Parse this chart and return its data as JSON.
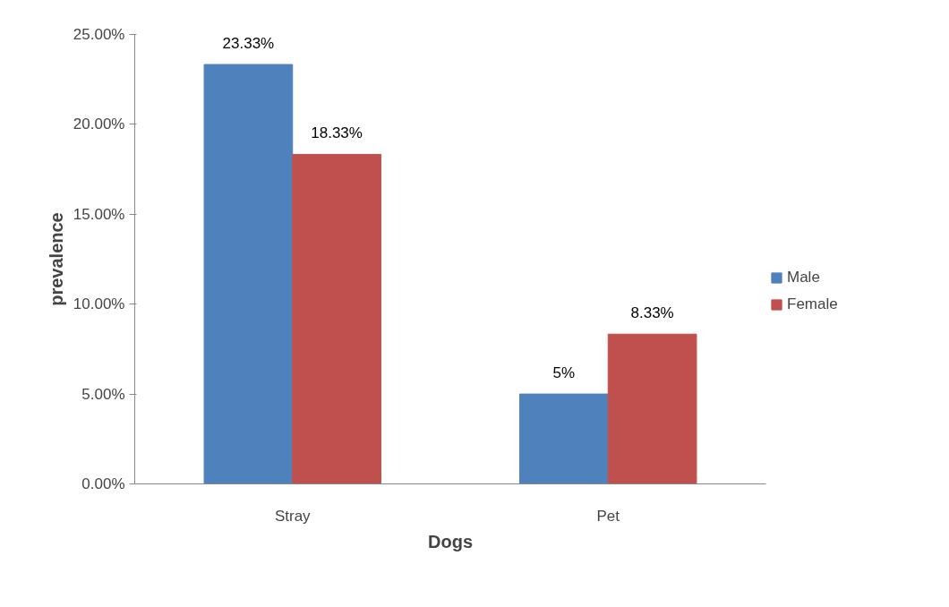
{
  "chart_data": {
    "type": "bar",
    "xlabel": "Dogs",
    "ylabel": "prevalence",
    "categories": [
      "Stray",
      "Pet"
    ],
    "series": [
      {
        "name": "Male",
        "color": "#4f81bd",
        "values": [
          23.33,
          5
        ],
        "value_labels": [
          "23.33%",
          "5%"
        ]
      },
      {
        "name": "Female",
        "color": "#c0504d",
        "values": [
          18.33,
          8.33
        ],
        "value_labels": [
          "18.33%",
          "8.33%"
        ]
      }
    ],
    "ylim": [
      0,
      25
    ],
    "yticks": [
      {
        "value": 0,
        "label": "0.00%"
      },
      {
        "value": 5,
        "label": "5.00%"
      },
      {
        "value": 10,
        "label": "10.00%"
      },
      {
        "value": 15,
        "label": "15.00%"
      },
      {
        "value": 20,
        "label": "20.00%"
      },
      {
        "value": 25,
        "label": "25.00%"
      }
    ],
    "grid": false,
    "legend": "right"
  }
}
